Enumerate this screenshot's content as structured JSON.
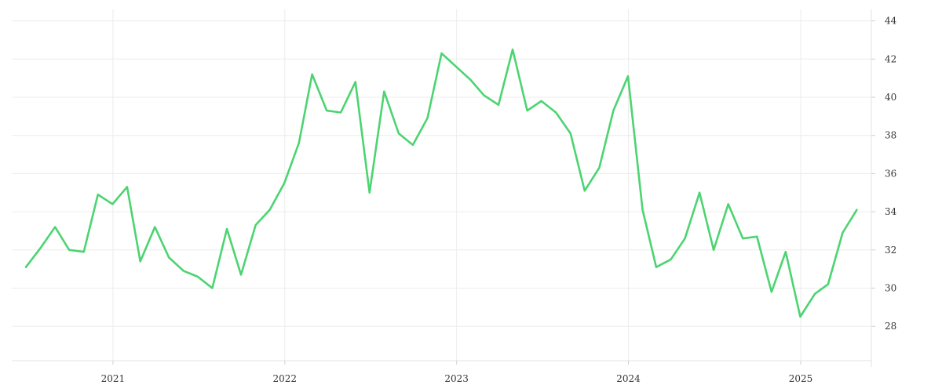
{
  "chart_data": {
    "type": "line",
    "title": "",
    "xlabel": "",
    "ylabel": "",
    "x_ticks": [
      "2021",
      "2022",
      "2023",
      "2024",
      "2025"
    ],
    "y_ticks": [
      28,
      30,
      32,
      34,
      36,
      38,
      40,
      42,
      44
    ],
    "ylim": [
      26.2,
      44.6
    ],
    "xlim": [
      "2020-05-31",
      "2025-05-31"
    ],
    "y_axis_position": "right",
    "grid": true,
    "legend": "none",
    "colors": {
      "line": "#4cd471",
      "grid": "#ececec"
    },
    "series": [
      {
        "x": [
          "2020-06-30",
          "2020-07-31",
          "2020-08-31",
          "2020-09-30",
          "2020-10-31",
          "2020-11-30",
          "2020-12-31",
          "2021-01-31",
          "2021-02-28",
          "2021-03-31",
          "2021-04-30",
          "2021-05-31",
          "2021-06-30",
          "2021-07-31",
          "2021-08-31",
          "2021-09-30",
          "2021-10-31",
          "2021-11-30",
          "2021-12-31",
          "2022-01-31",
          "2022-02-28",
          "2022-03-31",
          "2022-04-30",
          "2022-05-31",
          "2022-06-30",
          "2022-07-31",
          "2022-08-31",
          "2022-09-30",
          "2022-10-31",
          "2022-11-30",
          "2022-12-31",
          "2023-01-31",
          "2023-02-28",
          "2023-03-31",
          "2023-04-30",
          "2023-05-31",
          "2023-06-30",
          "2023-07-31",
          "2023-08-31",
          "2023-09-30",
          "2023-10-31",
          "2023-11-30",
          "2023-12-31",
          "2024-01-31",
          "2024-02-29",
          "2024-03-31",
          "2024-04-30",
          "2024-05-31",
          "2024-06-30",
          "2024-07-31",
          "2024-08-31",
          "2024-09-30",
          "2024-10-31",
          "2024-11-30",
          "2024-12-31",
          "2025-01-31",
          "2025-02-28",
          "2025-03-31",
          "2025-04-30"
        ],
        "y": [
          31.1,
          32.1,
          33.2,
          32.0,
          31.9,
          34.9,
          34.4,
          35.3,
          31.4,
          33.2,
          31.6,
          30.9,
          30.6,
          30.0,
          33.1,
          30.7,
          33.3,
          34.1,
          35.5,
          37.6,
          41.2,
          39.3,
          39.2,
          40.8,
          35.0,
          40.3,
          38.1,
          37.5,
          38.9,
          42.3,
          41.6,
          40.9,
          40.1,
          39.6,
          42.5,
          39.3,
          39.8,
          39.2,
          38.1,
          35.1,
          36.3,
          39.3,
          41.1,
          34.1,
          31.1,
          31.5,
          32.6,
          35.0,
          32.0,
          34.4,
          32.6,
          32.7,
          29.8,
          31.9,
          28.5,
          29.7,
          30.2,
          32.9,
          34.1
        ]
      }
    ]
  }
}
